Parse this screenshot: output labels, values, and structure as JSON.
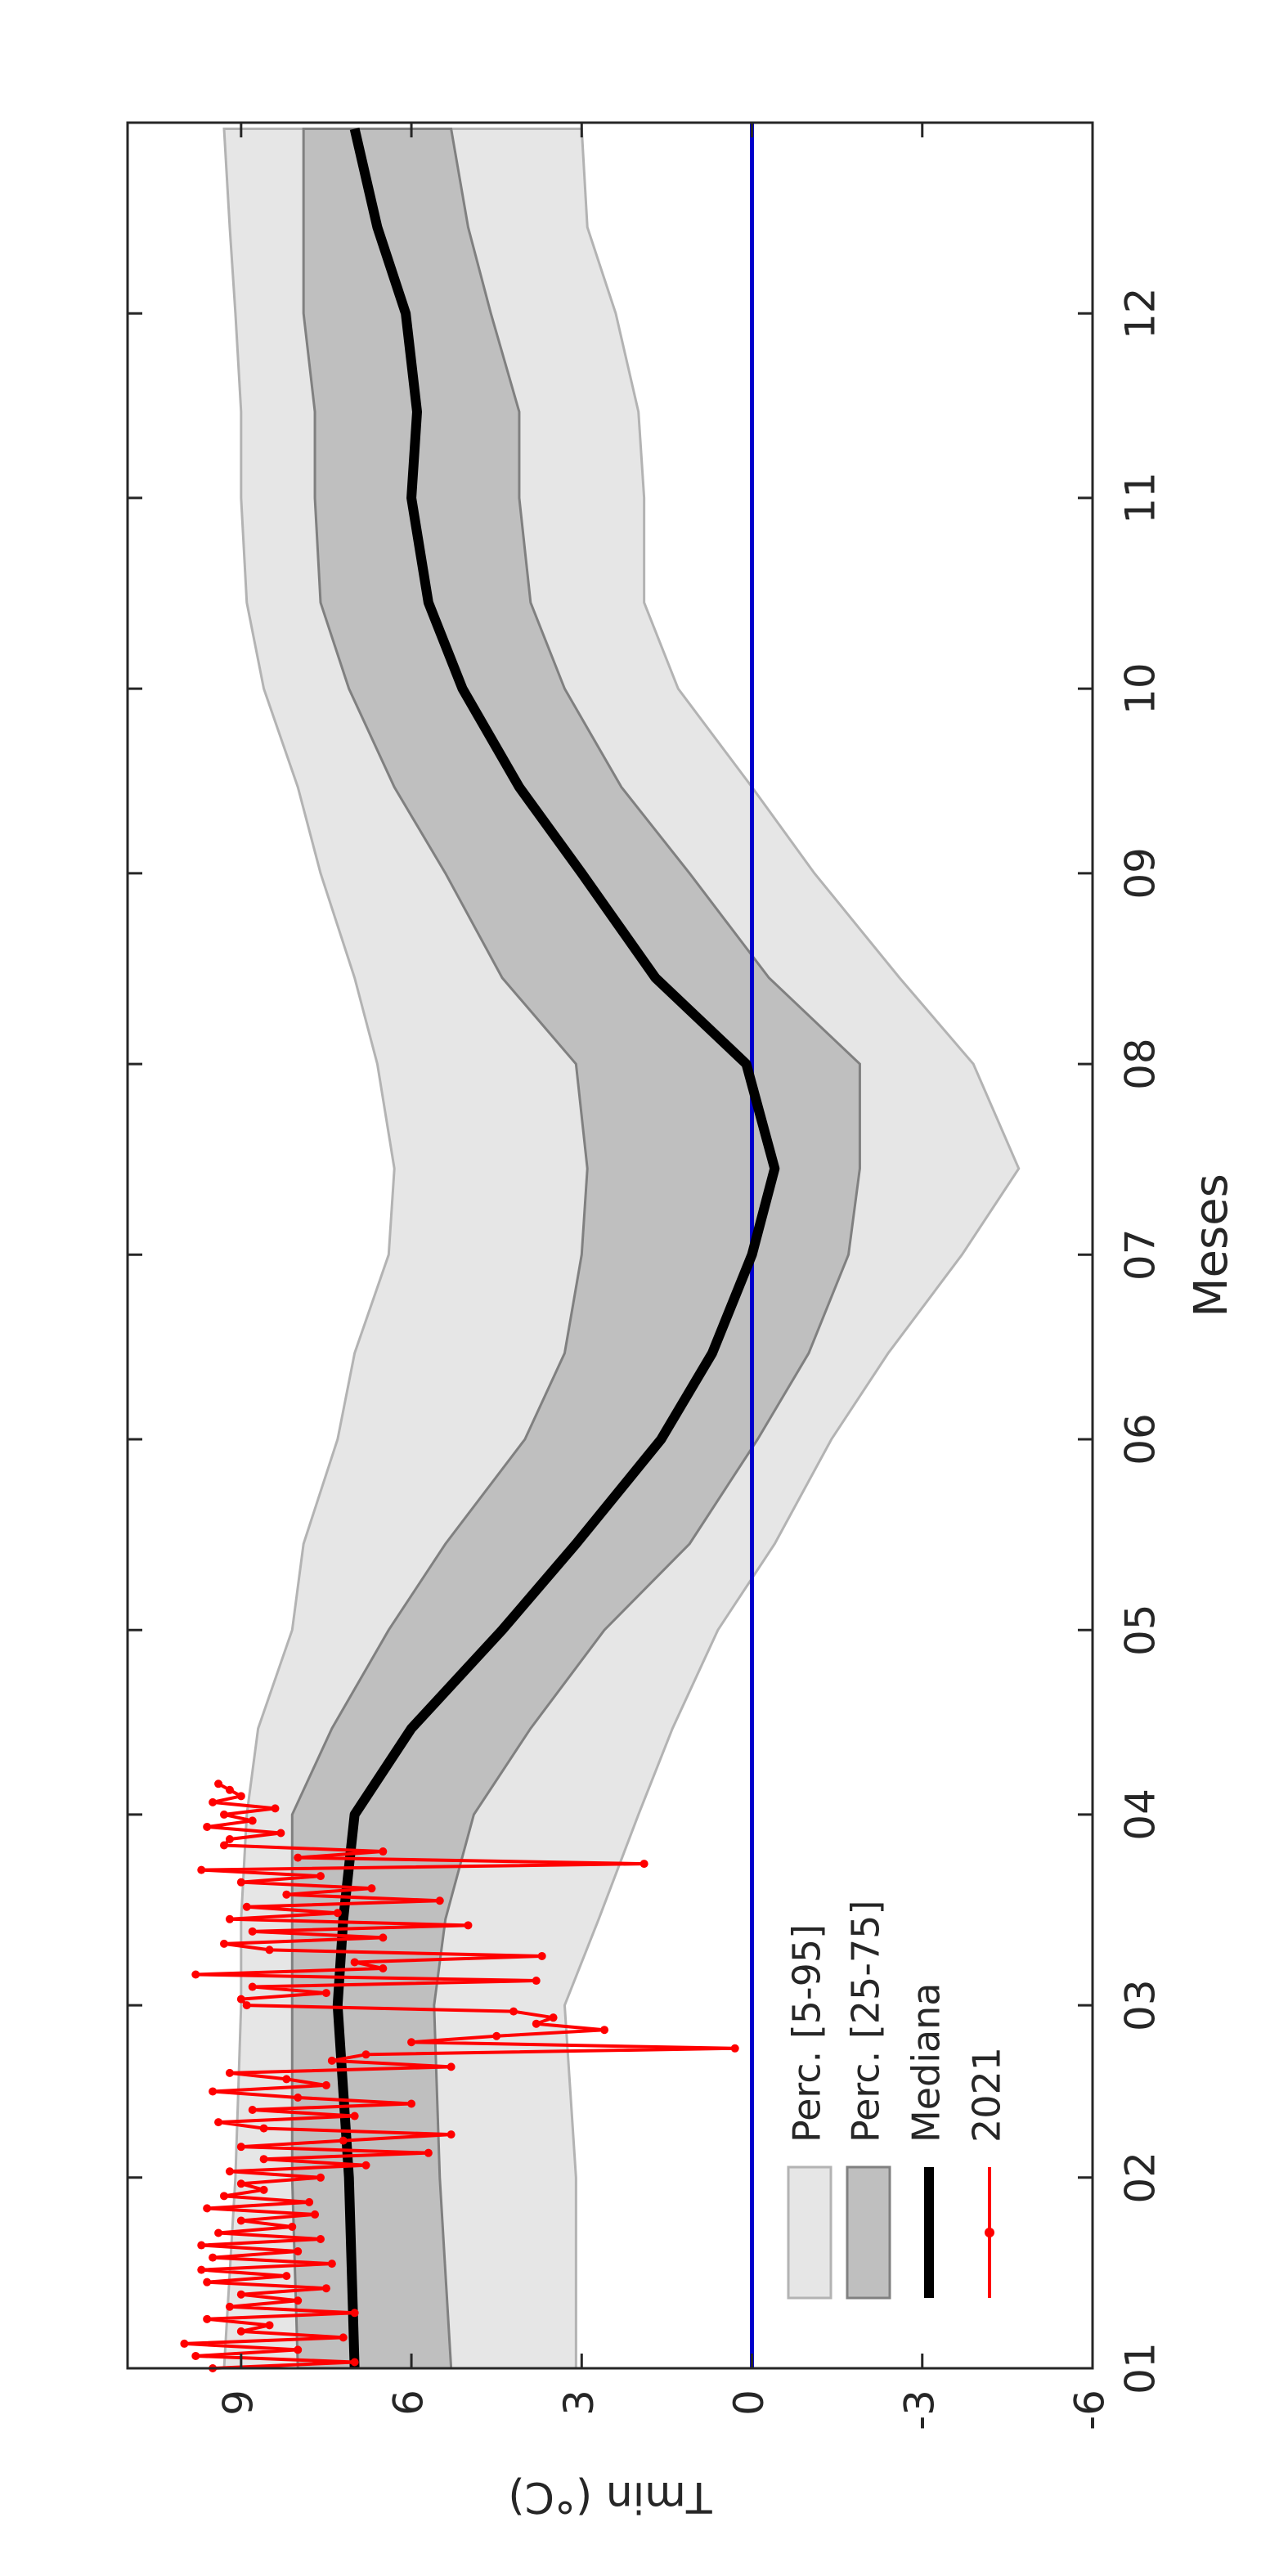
{
  "chart_data": {
    "type": "line",
    "x_label": "Meses",
    "y_label": "Tmin (°C)",
    "xlim": [
      1,
      366
    ],
    "ylim": [
      -6,
      11
    ],
    "xticks": [
      {
        "value": 1,
        "label": "01"
      },
      {
        "value": 32,
        "label": "02"
      },
      {
        "value": 60,
        "label": "03"
      },
      {
        "value": 91,
        "label": "04"
      },
      {
        "value": 121,
        "label": "05"
      },
      {
        "value": 152,
        "label": "06"
      },
      {
        "value": 182,
        "label": "07"
      },
      {
        "value": 213,
        "label": "08"
      },
      {
        "value": 244,
        "label": "09"
      },
      {
        "value": 274,
        "label": "10"
      },
      {
        "value": 305,
        "label": "11"
      },
      {
        "value": 335,
        "label": "12"
      }
    ],
    "yticks": [
      -6,
      -3,
      0,
      3,
      6,
      9
    ],
    "legend": "lower left",
    "reference_line": {
      "value": 0,
      "color": "#0000cc"
    },
    "x": [
      1,
      32,
      60,
      74,
      91,
      105,
      121,
      135,
      152,
      166,
      182,
      196,
      213,
      227,
      244,
      258,
      274,
      288,
      305,
      319,
      335,
      349,
      365
    ],
    "series": [
      {
        "name": "Perc. [5-95]",
        "type": "area",
        "color": "#e6e6e6",
        "edge": "#b3b3b3",
        "lower": [
          3.1,
          3.1,
          3.3,
          2.7,
          2.0,
          1.4,
          0.6,
          -0.4,
          -1.4,
          -2.4,
          -3.7,
          -4.7,
          -3.9,
          -2.6,
          -1.1,
          0.0,
          1.3,
          1.9,
          1.9,
          2.0,
          2.4,
          2.9,
          3.0
        ],
        "upper": [
          9.3,
          9.1,
          9.0,
          9.0,
          8.9,
          8.7,
          8.1,
          7.9,
          7.3,
          7.0,
          6.4,
          6.3,
          6.6,
          7.0,
          7.6,
          8.0,
          8.6,
          8.9,
          9.0,
          9.0,
          9.1,
          9.2,
          9.3
        ]
      },
      {
        "name": "Perc. [25-75]",
        "type": "area",
        "color": "#bfbfbf",
        "edge": "#808080",
        "lower": [
          5.3,
          5.5,
          5.6,
          5.4,
          4.9,
          3.9,
          2.6,
          1.1,
          -0.1,
          -1.0,
          -1.7,
          -1.9,
          -1.9,
          -0.3,
          1.1,
          2.3,
          3.3,
          3.9,
          4.1,
          4.1,
          4.6,
          5.0,
          5.3
        ],
        "upper": [
          8.0,
          8.1,
          8.1,
          8.1,
          8.1,
          7.4,
          6.4,
          5.4,
          4.0,
          3.3,
          3.0,
          2.9,
          3.1,
          4.4,
          5.4,
          6.3,
          7.1,
          7.6,
          7.7,
          7.7,
          7.9,
          7.9,
          7.9
        ]
      },
      {
        "name": "Mediana",
        "type": "line",
        "color": "#000000",
        "values": [
          7.0,
          7.1,
          7.3,
          7.2,
          7.0,
          6.0,
          4.4,
          3.1,
          1.6,
          0.7,
          0.0,
          -0.4,
          0.1,
          1.7,
          3.0,
          4.1,
          5.1,
          5.7,
          6.0,
          5.9,
          6.1,
          6.6,
          7.0
        ]
      },
      {
        "name": "2021",
        "type": "dotline",
        "color": "#ff0000",
        "x": [
          1,
          2,
          3,
          4,
          5,
          6,
          7,
          8,
          9,
          10,
          11,
          12,
          13,
          14,
          15,
          16,
          17,
          18,
          19,
          20,
          21,
          22,
          23,
          24,
          25,
          26,
          27,
          28,
          29,
          30,
          31,
          32,
          33,
          34,
          35,
          36,
          37,
          38,
          39,
          40,
          41,
          42,
          43,
          44,
          45,
          46,
          47,
          48,
          49,
          50,
          51,
          52,
          53,
          54,
          55,
          56,
          57,
          58,
          59,
          60,
          61,
          62,
          63,
          64,
          65,
          66,
          67,
          68,
          69,
          70,
          71,
          72,
          73,
          74,
          75,
          76,
          77,
          78,
          79,
          80,
          81,
          82,
          83,
          84,
          85,
          86,
          87,
          88,
          89,
          90,
          91,
          92,
          93,
          94,
          95,
          96
        ],
        "values": [
          9.5,
          7.0,
          9.8,
          8.0,
          10.0,
          7.2,
          9.0,
          8.5,
          9.6,
          7.0,
          9.2,
          8.0,
          9.0,
          7.5,
          9.6,
          8.2,
          9.7,
          7.4,
          9.5,
          8.0,
          9.7,
          7.6,
          9.4,
          8.1,
          9.0,
          7.7,
          9.6,
          7.8,
          9.3,
          8.6,
          9.0,
          7.6,
          9.2,
          6.8,
          8.6,
          5.7,
          9.0,
          7.2,
          5.3,
          8.6,
          9.4,
          7.0,
          8.8,
          6.0,
          8.0,
          9.5,
          7.5,
          8.2,
          9.2,
          5.3,
          7.4,
          6.8,
          0.3,
          6.0,
          4.5,
          2.6,
          3.8,
          3.5,
          4.2,
          8.9,
          9.0,
          7.5,
          8.8,
          3.8,
          9.8,
          6.5,
          7.0,
          3.7,
          8.5,
          9.3,
          6.5,
          8.8,
          5.0,
          9.2,
          7.3,
          8.9,
          5.5,
          8.2,
          6.7,
          9.0,
          7.6,
          9.7,
          1.9,
          8.0,
          6.5,
          9.3,
          9.2,
          8.3,
          9.6,
          8.8,
          9.3,
          8.4,
          9.5,
          9.0,
          9.2,
          9.4
        ]
      }
    ]
  }
}
